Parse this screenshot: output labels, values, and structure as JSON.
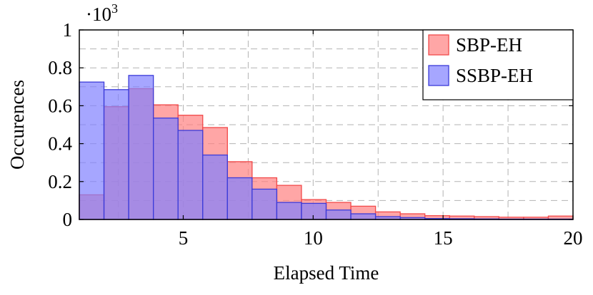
{
  "chart_data": {
    "type": "bar",
    "title": "",
    "xlabel": "Elapsed Time",
    "ylabel": "Occurences",
    "y_scale_label": "·10",
    "y_scale_exponent": "3",
    "xlim": [
      1,
      20
    ],
    "ylim": [
      0,
      1
    ],
    "x_ticks": [
      5,
      10,
      15,
      20
    ],
    "y_ticks": [
      0,
      0.2,
      0.4,
      0.6,
      0.8,
      1
    ],
    "y_tick_labels": [
      "0",
      "0.2",
      "0.4",
      "0.6",
      "0.8",
      "1"
    ],
    "x_tick_labels": [
      "5",
      "10",
      "15",
      "20"
    ],
    "grid": true,
    "legend_position": "top-right",
    "bin_edges": [
      1,
      1.95,
      2.9,
      3.85,
      4.8,
      5.75,
      6.7,
      7.65,
      8.6,
      9.55,
      10.5,
      11.45,
      12.4,
      13.35,
      14.3,
      15.25,
      16.2,
      17.15,
      18.1,
      19.05,
      20
    ],
    "series": [
      {
        "name": "SBP-EH",
        "color": "#ff8080",
        "edge_color": "#f24a4a",
        "values": [
          0.13,
          0.595,
          0.69,
          0.605,
          0.55,
          0.485,
          0.305,
          0.22,
          0.18,
          0.105,
          0.09,
          0.07,
          0.04,
          0.03,
          0.02,
          0.018,
          0.015,
          0.012,
          0.012,
          0.018
        ]
      },
      {
        "name": "SSBP-EH",
        "color": "#8080ff",
        "edge_color": "#3c3cd9",
        "values": [
          0.725,
          0.685,
          0.76,
          0.535,
          0.47,
          0.34,
          0.22,
          0.16,
          0.09,
          0.085,
          0.05,
          0.03,
          0.015,
          0.01,
          0.005,
          0.004,
          0.003,
          0.002,
          0.002,
          0.002
        ]
      }
    ]
  }
}
